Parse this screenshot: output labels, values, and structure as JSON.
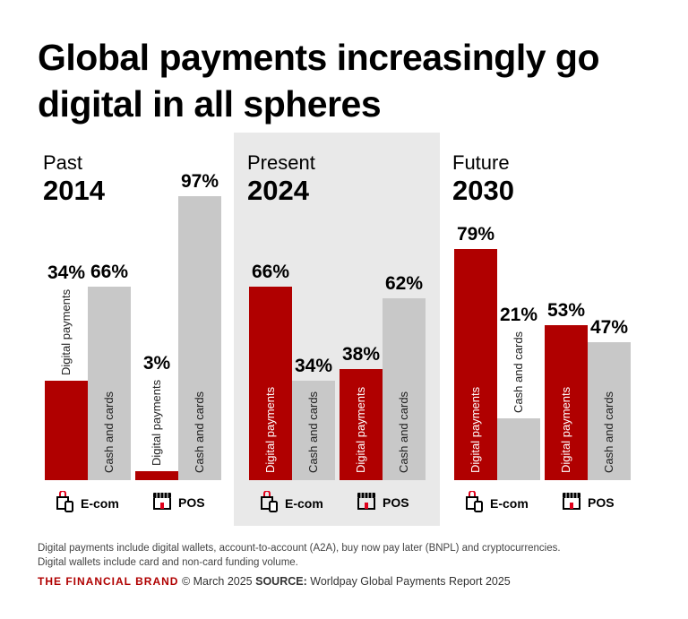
{
  "title": "Global payments increasingly go digital in all spheres",
  "colors": {
    "digital": "#b00000",
    "cash": "#c8c8c8",
    "highlight_panel": "#e9e9e9"
  },
  "chart_data": {
    "type": "bar",
    "ylim": [
      0,
      100
    ],
    "series": [
      {
        "name": "Digital payments"
      },
      {
        "name": "Cash and cards"
      }
    ],
    "groups": [
      {
        "era": "Past",
        "year": "2014",
        "categories": [
          {
            "label": "E-com",
            "icon": "shopping-bag-phone-icon",
            "digital": 34,
            "cash": 66
          },
          {
            "label": "POS",
            "icon": "storefront-icon",
            "digital": 3,
            "cash": 97
          }
        ]
      },
      {
        "era": "Present",
        "year": "2024",
        "highlighted": true,
        "categories": [
          {
            "label": "E-com",
            "icon": "shopping-bag-phone-icon",
            "digital": 66,
            "cash": 34
          },
          {
            "label": "POS",
            "icon": "storefront-icon",
            "digital": 38,
            "cash": 62
          }
        ]
      },
      {
        "era": "Future",
        "year": "2030",
        "categories": [
          {
            "label": "E-com",
            "icon": "shopping-bag-phone-icon",
            "digital": 79,
            "cash": 21
          },
          {
            "label": "POS",
            "icon": "storefront-icon",
            "digital": 53,
            "cash": 47
          }
        ]
      }
    ]
  },
  "notes": [
    "Digital payments include digital wallets, account-to-account (A2A), buy now pay later (BNPL) and cryptocurrencies.",
    "Digital wallets include card and non-card funding volume."
  ],
  "footer": {
    "brand": "THE FINANCIAL BRAND",
    "date": "© March 2025",
    "source_label": "SOURCE:",
    "source": "Worldpay Global Payments Report 2025"
  }
}
